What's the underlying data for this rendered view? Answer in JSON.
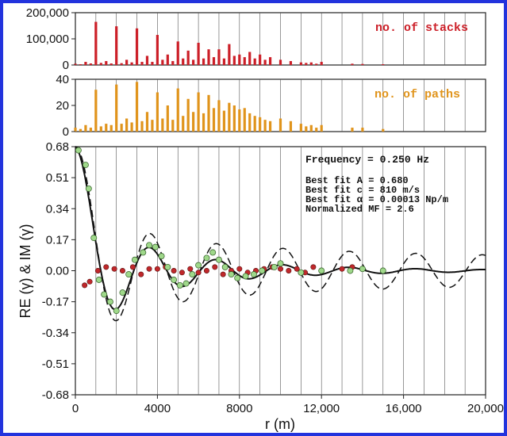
{
  "colors": {
    "frame": "#2233dd",
    "stacks": "#cc1f28",
    "paths": "#e0941c",
    "re_points": "#9fd88a",
    "im_points": "#c0282b",
    "fit": "#111111"
  },
  "chart_data": [
    {
      "id": "stacks",
      "type": "bar",
      "legend": "no. of stacks",
      "ylim": [
        0,
        200000
      ],
      "yticks": [
        "0",
        "100,000",
        "200,000"
      ],
      "x": [
        0,
        250,
        500,
        750,
        1000,
        1250,
        1500,
        1750,
        2000,
        2250,
        2500,
        2750,
        3000,
        3250,
        3500,
        3750,
        4000,
        4250,
        4500,
        4750,
        5000,
        5250,
        5500,
        5750,
        6000,
        6250,
        6500,
        6750,
        7000,
        7250,
        7500,
        7750,
        8000,
        8250,
        8500,
        8750,
        9000,
        9250,
        9500,
        10000,
        10500,
        11000,
        11250,
        11500,
        11750,
        12000,
        13500,
        14000,
        15000
      ],
      "values": [
        5000,
        3000,
        12000,
        6000,
        165000,
        8000,
        15000,
        6000,
        148000,
        7000,
        20000,
        10000,
        140000,
        12000,
        35000,
        12000,
        115000,
        20000,
        40000,
        15000,
        90000,
        25000,
        55000,
        20000,
        85000,
        25000,
        60000,
        30000,
        60000,
        25000,
        80000,
        35000,
        40000,
        30000,
        50000,
        25000,
        40000,
        20000,
        30000,
        20000,
        15000,
        10000,
        8000,
        10000,
        5000,
        12000,
        5000,
        4000,
        3000
      ]
    },
    {
      "id": "paths",
      "type": "bar",
      "legend": "no. of paths",
      "ylim": [
        0,
        40
      ],
      "yticks": [
        "0",
        "20",
        "40"
      ],
      "x": [
        0,
        250,
        500,
        750,
        1000,
        1250,
        1500,
        1750,
        2000,
        2250,
        2500,
        2750,
        3000,
        3250,
        3500,
        3750,
        4000,
        4250,
        4500,
        4750,
        5000,
        5250,
        5500,
        5750,
        6000,
        6250,
        6500,
        6750,
        7000,
        7250,
        7500,
        7750,
        8000,
        8250,
        8500,
        8750,
        9000,
        9250,
        9500,
        10000,
        10500,
        11000,
        11250,
        11500,
        11750,
        12000,
        13500,
        14000,
        15000
      ],
      "values": [
        3,
        2,
        5,
        3,
        32,
        4,
        6,
        5,
        36,
        6,
        10,
        7,
        38,
        8,
        15,
        9,
        30,
        10,
        20,
        9,
        33,
        12,
        25,
        15,
        30,
        14,
        28,
        18,
        24,
        16,
        22,
        20,
        17,
        18,
        14,
        12,
        11,
        9,
        8,
        10,
        8,
        6,
        4,
        5,
        3,
        5,
        3,
        3,
        2
      ]
    },
    {
      "id": "coherence",
      "type": "scatter",
      "ylabel": "RE (γ) & IM (γ)",
      "xlabel": "r (m)",
      "xlim": [
        0,
        20000
      ],
      "ylim": [
        -0.68,
        0.68
      ],
      "xticks": [
        "0",
        "4000",
        "8000",
        "12,000",
        "16,000",
        "20,000"
      ],
      "yticks": [
        "0.68",
        "0.51",
        "0.34",
        "0.17",
        "0.00",
        "-0.17",
        "-0.34",
        "-0.51",
        "-0.68"
      ],
      "grid_x": "vertical lines every 1000 m",
      "annotations": {
        "frequency": "Frequency = 0.250 Hz",
        "fit_a": "Best fit A = 0.680",
        "fit_c": "Best fit c = 810 m/s",
        "fit_alpha": "Best fit α = 0.00013 Np/m",
        "mf": "Normalized MF = 2.6"
      },
      "fit_params": {
        "A": 0.68,
        "c": 810,
        "alpha": 0.00013,
        "f": 0.25
      },
      "re_points": [
        [
          150,
          0.66
        ],
        [
          500,
          0.58
        ],
        [
          650,
          0.45
        ],
        [
          900,
          0.18
        ],
        [
          1150,
          -0.05
        ],
        [
          1400,
          -0.13
        ],
        [
          1700,
          -0.17
        ],
        [
          2000,
          -0.22
        ],
        [
          2300,
          -0.12
        ],
        [
          2600,
          -0.02
        ],
        [
          2900,
          0.06
        ],
        [
          3300,
          0.1
        ],
        [
          3600,
          0.14
        ],
        [
          3900,
          0.13
        ],
        [
          4200,
          0.08
        ],
        [
          4500,
          0.02
        ],
        [
          4800,
          -0.05
        ],
        [
          5100,
          -0.08
        ],
        [
          5400,
          -0.07
        ],
        [
          5700,
          -0.02
        ],
        [
          6000,
          0.03
        ],
        [
          6400,
          0.07
        ],
        [
          6700,
          0.1
        ],
        [
          7000,
          0.06
        ],
        [
          7300,
          0.02
        ],
        [
          7600,
          -0.02
        ],
        [
          7900,
          -0.04
        ],
        [
          8300,
          -0.03
        ],
        [
          8700,
          -0.02
        ],
        [
          9100,
          0.0
        ],
        [
          9700,
          0.02
        ],
        [
          10000,
          0.04
        ],
        [
          11000,
          -0.01
        ],
        [
          12000,
          0.0
        ],
        [
          13400,
          0.0
        ],
        [
          14000,
          0.01
        ],
        [
          15000,
          0.0
        ]
      ],
      "im_points": [
        [
          450,
          -0.08
        ],
        [
          700,
          -0.06
        ],
        [
          1100,
          0.0
        ],
        [
          1500,
          0.02
        ],
        [
          1900,
          0.01
        ],
        [
          2300,
          0.0
        ],
        [
          2800,
          0.02
        ],
        [
          3200,
          -0.02
        ],
        [
          3600,
          0.01
        ],
        [
          4000,
          0.01
        ],
        [
          4400,
          0.02
        ],
        [
          4800,
          0.0
        ],
        [
          5200,
          -0.01
        ],
        [
          5600,
          0.01
        ],
        [
          6000,
          -0.01
        ],
        [
          6400,
          0.0
        ],
        [
          6800,
          0.02
        ],
        [
          7200,
          -0.02
        ],
        [
          7600,
          0.0
        ],
        [
          8000,
          0.01
        ],
        [
          8400,
          -0.01
        ],
        [
          8800,
          0.0
        ],
        [
          9200,
          0.01
        ],
        [
          9600,
          0.02
        ],
        [
          10000,
          0.01
        ],
        [
          10400,
          0.0
        ],
        [
          10800,
          0.01
        ],
        [
          11200,
          -0.01
        ],
        [
          11600,
          0.02
        ],
        [
          12000,
          0.0
        ],
        [
          13000,
          0.01
        ],
        [
          13500,
          0.02
        ],
        [
          15000,
          0.0
        ]
      ]
    }
  ]
}
